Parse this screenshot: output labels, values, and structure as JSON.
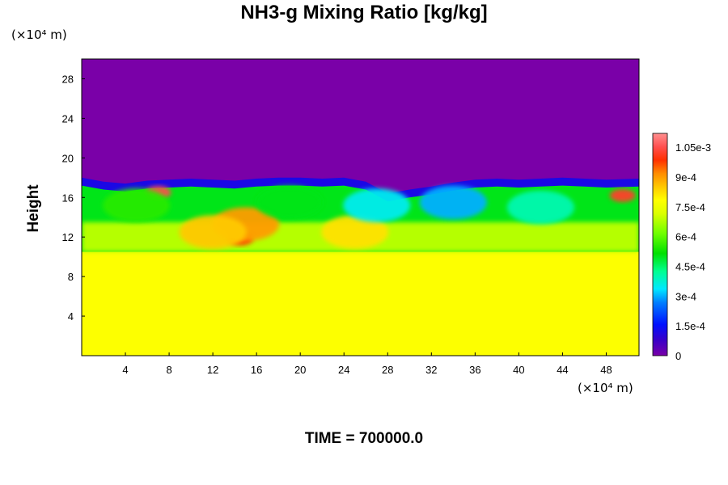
{
  "chart_data": {
    "type": "heatmap",
    "title": "NH3-g Mixing Ratio [kg/kg]",
    "ylabel": "Height",
    "xlabel": "",
    "x_unit": "(×10⁴ m)",
    "y_unit": "(×10⁴ m)",
    "xlim": [
      0,
      51
    ],
    "ylim": [
      0,
      30
    ],
    "x_ticks": [
      "4",
      "8",
      "12",
      "16",
      "20",
      "24",
      "28",
      "32",
      "36",
      "40",
      "44",
      "48"
    ],
    "y_ticks": [
      "4",
      "8",
      "12",
      "16",
      "20",
      "24",
      "28"
    ],
    "colorbar": {
      "min": 0,
      "max": 0.00112,
      "tick_labels": [
        "0",
        "1.5e-4",
        "3e-4",
        "4.5e-4",
        "6e-4",
        "7.5e-4",
        "9e-4",
        "1.05e-3"
      ],
      "tick_values": [
        0,
        0.00015,
        0.0003,
        0.00045,
        0.0006,
        0.00075,
        0.0009,
        0.00105
      ]
    },
    "field": {
      "upper_value": 0,
      "lower_value": 0.00078,
      "layer_top_profile": [
        [
          0,
          18.0
        ],
        [
          2,
          17.6
        ],
        [
          4,
          17.4
        ],
        [
          6,
          17.7
        ],
        [
          8,
          17.8
        ],
        [
          10,
          17.9
        ],
        [
          12,
          17.8
        ],
        [
          14,
          17.7
        ],
        [
          16,
          17.9
        ],
        [
          18,
          18.0
        ],
        [
          20,
          18.0
        ],
        [
          22,
          17.9
        ],
        [
          24,
          18.0
        ],
        [
          26,
          17.6
        ],
        [
          28,
          16.4
        ],
        [
          30,
          16.8
        ],
        [
          32,
          17.1
        ],
        [
          34,
          17.5
        ],
        [
          36,
          17.8
        ],
        [
          38,
          17.9
        ],
        [
          40,
          17.8
        ],
        [
          42,
          17.9
        ],
        [
          44,
          18.0
        ],
        [
          46,
          17.9
        ],
        [
          48,
          17.8
        ],
        [
          51,
          17.9
        ]
      ],
      "features": [
        {
          "x": 7,
          "y": 16.5,
          "value": 0.00105
        },
        {
          "x": 49.5,
          "y": 16.2,
          "value": 0.00102
        },
        {
          "x": 14.5,
          "y": 11.8,
          "value": 0.00098
        },
        {
          "x": 15,
          "y": 13.3,
          "value": 0.0009
        },
        {
          "x": 12,
          "y": 12.5,
          "value": 0.00085
        },
        {
          "x": 25,
          "y": 12.5,
          "value": 0.00082
        },
        {
          "x": 34,
          "y": 15.5,
          "value": 0.0003
        },
        {
          "x": 27,
          "y": 15.2,
          "value": 0.00035
        },
        {
          "x": 42,
          "y": 15.0,
          "value": 0.0004
        },
        {
          "x": 19,
          "y": 15.5,
          "value": 0.0005
        },
        {
          "x": 5,
          "y": 15.2,
          "value": 0.00055
        }
      ]
    }
  },
  "footer": {
    "time_label": "TIME = 700000.0"
  }
}
